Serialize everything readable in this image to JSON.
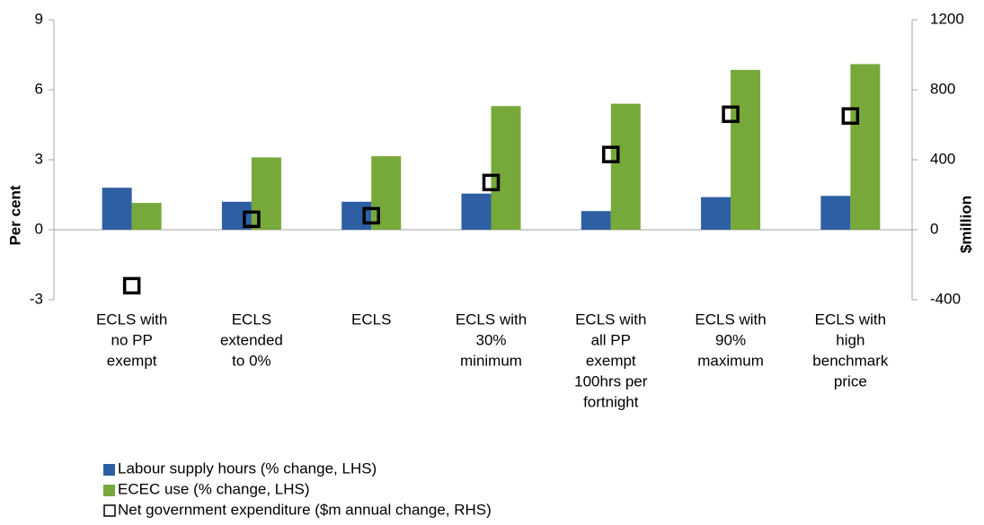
{
  "chart_data": {
    "type": "bar",
    "ylabel": "Per cent",
    "y2label": "$million",
    "categories": [
      [
        "ECLS with",
        "no PP",
        "exempt"
      ],
      [
        "ECLS",
        "extended",
        "to 0%"
      ],
      [
        "ECLS"
      ],
      [
        "ECLS with",
        "30%",
        "minimum"
      ],
      [
        "ECLS with",
        "all PP",
        "exempt",
        "100hrs per",
        "fortnight"
      ],
      [
        "ECLS with",
        "90%",
        "maximum"
      ],
      [
        "ECLS with",
        "high",
        "benchmark",
        "price"
      ]
    ],
    "series": [
      {
        "name": "Labour supply hours (% change, LHS)",
        "type": "bar",
        "color": "#2e5fa3",
        "values": [
          1.8,
          1.2,
          1.2,
          1.55,
          0.8,
          1.4,
          1.45
        ]
      },
      {
        "name": "ECEC use (% change, LHS)",
        "type": "bar",
        "color": "#77a83a",
        "values": [
          1.15,
          3.1,
          3.15,
          5.3,
          5.4,
          6.85,
          7.1
        ]
      },
      {
        "name": "Net government expenditure ($m annual change, RHS)",
        "type": "scatter",
        "axis": "y2",
        "color": "#000000",
        "values": [
          -320,
          60,
          80,
          270,
          430,
          660,
          650
        ]
      }
    ],
    "ylim": [
      -3,
      9
    ],
    "yticks": [
      -3,
      0,
      3,
      6,
      9
    ],
    "y2lim": [
      -400,
      1200
    ],
    "y2ticks": [
      -400,
      0,
      400,
      800,
      1200
    ],
    "legend": "bottom"
  }
}
